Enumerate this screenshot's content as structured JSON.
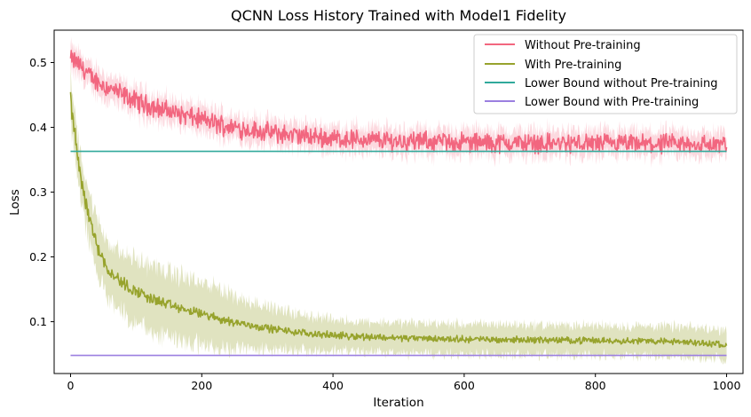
{
  "chart_data": {
    "type": "line",
    "title": "QCNN Loss History Trained with Model1 Fidelity",
    "xlabel": "Iteration",
    "ylabel": "Loss",
    "xlim": [
      -25,
      1025
    ],
    "ylim": [
      0.02,
      0.55
    ],
    "xticks": [
      0,
      200,
      400,
      600,
      800,
      1000
    ],
    "yticks": [
      0.1,
      0.2,
      0.3,
      0.4,
      0.5
    ],
    "grid": false,
    "legend_position": "top-right",
    "series": [
      {
        "name": "Without Pre-training",
        "color": "#f2667f",
        "band_color": "#f2667f",
        "x": [
          0,
          10,
          20,
          30,
          50,
          75,
          100,
          125,
          150,
          175,
          200,
          225,
          250,
          275,
          300,
          350,
          400,
          450,
          500,
          550,
          600,
          650,
          700,
          750,
          800,
          850,
          900,
          950,
          1000
        ],
        "y": [
          0.505,
          0.5,
          0.49,
          0.478,
          0.465,
          0.452,
          0.44,
          0.432,
          0.425,
          0.418,
          0.412,
          0.405,
          0.4,
          0.396,
          0.392,
          0.387,
          0.383,
          0.381,
          0.379,
          0.378,
          0.377,
          0.376,
          0.376,
          0.375,
          0.375,
          0.374,
          0.374,
          0.374,
          0.373
        ],
        "spread": 0.018,
        "noise": 0.012
      },
      {
        "name": "With Pre-training",
        "color": "#97a32d",
        "band_color": "#97a32d",
        "x": [
          0,
          5,
          10,
          20,
          30,
          40,
          50,
          60,
          75,
          90,
          100,
          125,
          150,
          175,
          200,
          225,
          250,
          300,
          350,
          400,
          450,
          500,
          600,
          700,
          800,
          900,
          1000
        ],
        "y": [
          0.445,
          0.4,
          0.36,
          0.3,
          0.255,
          0.22,
          0.195,
          0.178,
          0.163,
          0.152,
          0.147,
          0.135,
          0.126,
          0.118,
          0.112,
          0.105,
          0.099,
          0.09,
          0.083,
          0.079,
          0.077,
          0.075,
          0.073,
          0.072,
          0.071,
          0.07,
          0.065
        ],
        "spread": 0.022,
        "noise": 0.004
      },
      {
        "name": "Lower Bound without Pre-training",
        "color": "#30a99b",
        "x": [
          0,
          1000
        ],
        "y": [
          0.363,
          0.363
        ]
      },
      {
        "name": "Lower Bound with Pre-training",
        "color": "#9b7fe0",
        "x": [
          0,
          1000
        ],
        "y": [
          0.048,
          0.048
        ]
      }
    ]
  }
}
